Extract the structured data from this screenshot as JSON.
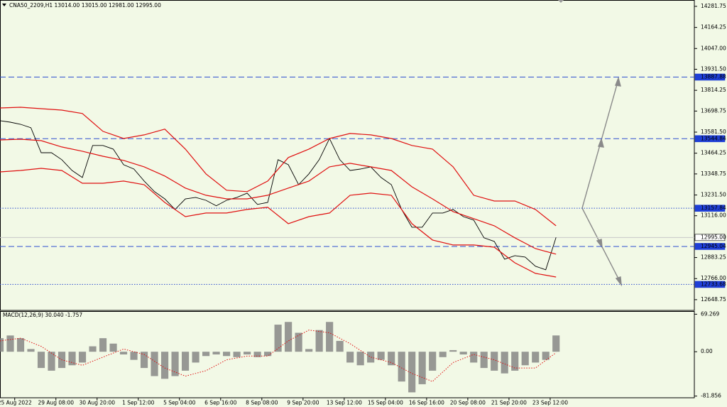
{
  "header": "CNA50_2209,H1  13014.00 13015.00 12981.00 12995.00",
  "chart_data": [
    {
      "type": "line",
      "xlim": [
        0,
        472
      ],
      "xticks": [
        {
          "value": 10,
          "label": "25 Aug 2022"
        },
        {
          "value": 38,
          "label": "29 Aug 08:00"
        },
        {
          "value": 66,
          "label": "30 Aug 20:00"
        },
        {
          "value": 94,
          "label": "1 Sep 12:00"
        },
        {
          "value": 122,
          "label": "5 Sep 04:00"
        },
        {
          "value": 150,
          "label": "6 Sep 16:00"
        },
        {
          "value": 178,
          "label": "8 Sep 08:00"
        },
        {
          "value": 206,
          "label": "9 Sep 20:00"
        },
        {
          "value": 234,
          "label": "13 Sep 12:00"
        },
        {
          "value": 262,
          "label": "15 Sep 04:00"
        },
        {
          "value": 290,
          "label": "16 Sep 16:00"
        },
        {
          "value": 318,
          "label": "20 Sep 08:00"
        },
        {
          "value": 346,
          "label": "21 Sep 20:00"
        },
        {
          "value": 374,
          "label": "23 Sep 12:00"
        }
      ],
      "ylim": [
        12589,
        14317
      ],
      "yticks": [
        14281.75,
        14164.25,
        {
          "value": 14047,
          "label": "14047.00"
        },
        {
          "value": 13931.5,
          "label": "13931.50"
        },
        13814.25,
        13698.75,
        {
          "value": 13581.5,
          "label": "13581.50"
        },
        13464.25,
        13348.75,
        {
          "value": 13231.5,
          "label": "13231.50"
        },
        {
          "value": 13116,
          "label": "13116.00"
        },
        12883.25,
        {
          "value": 12766,
          "label": "12766.00"
        },
        12648.75
      ],
      "levels": [
        {
          "value": 13887.88,
          "line": "dashed",
          "color": "#2f4fd0",
          "badge": "blue"
        },
        {
          "value": 13544.84,
          "line": "dashed",
          "color": "#2f4fd0",
          "badge": "blue"
        },
        {
          "value": 13157.84,
          "line": "dotted",
          "color": "#2f4fd0",
          "badge": "blue"
        },
        {
          "value": 12995,
          "label": "12995.00",
          "line": "solid",
          "color": "#c8c8c8",
          "badge": "white"
        },
        {
          "value": 12945.04,
          "line": "dashed",
          "color": "#2f4fd0",
          "badge": "blue"
        },
        {
          "value": 12733.68,
          "line": "dotted",
          "color": "#2f4fd0",
          "badge": "blue"
        }
      ],
      "series": [
        {
          "color": "#000000",
          "x": [
            0,
            7,
            14,
            21,
            28,
            35,
            42,
            49,
            56,
            63,
            70,
            77,
            84,
            91,
            98,
            105,
            112,
            119,
            126,
            133,
            140,
            147,
            154,
            161,
            168,
            175,
            182,
            189,
            196,
            203,
            210,
            217,
            224,
            231,
            238,
            245,
            252,
            259,
            266,
            273,
            280,
            287,
            294,
            301,
            308,
            315,
            322,
            329,
            336,
            343,
            350,
            357,
            364,
            371,
            378
          ],
          "values": [
            13645,
            13637,
            13625,
            13606,
            13467,
            13467,
            13428,
            13368,
            13329,
            13507,
            13507,
            13487,
            13400,
            13376,
            13309,
            13250,
            13210,
            13151,
            13210,
            13218,
            13202,
            13171,
            13202,
            13218,
            13242,
            13179,
            13190,
            13428,
            13400,
            13289,
            13349,
            13428,
            13546,
            13428,
            13368,
            13376,
            13388,
            13329,
            13289,
            13151,
            13052,
            13052,
            13131,
            13131,
            13151,
            13111,
            13092,
            12993,
            12973,
            12874,
            12894,
            12886,
            12835,
            12815,
            12995
          ]
        },
        {
          "color": "#e01010",
          "x": [
            0,
            14,
            28,
            42,
            56,
            70,
            84,
            98,
            112,
            126,
            140,
            154,
            168,
            182,
            196,
            210,
            224,
            238,
            252,
            266,
            280,
            294,
            308,
            322,
            336,
            350,
            364,
            378
          ],
          "values": [
            13716,
            13720,
            13712,
            13704,
            13685,
            13586,
            13546,
            13566,
            13598,
            13487,
            13349,
            13258,
            13250,
            13309,
            13440,
            13487,
            13546,
            13574,
            13566,
            13546,
            13507,
            13487,
            13388,
            13230,
            13198,
            13198,
            13151,
            13060
          ]
        },
        {
          "color": "#e01010",
          "x": [
            0,
            14,
            28,
            42,
            56,
            70,
            84,
            98,
            112,
            126,
            140,
            154,
            168,
            182,
            196,
            210,
            224,
            238,
            252,
            266,
            280,
            294,
            308,
            322,
            336,
            350,
            364,
            378
          ],
          "values": [
            13538,
            13542,
            13534,
            13499,
            13475,
            13447,
            13424,
            13388,
            13337,
            13270,
            13230,
            13210,
            13210,
            13230,
            13270,
            13309,
            13388,
            13408,
            13388,
            13368,
            13277,
            13210,
            13139,
            13100,
            13060,
            12993,
            12933,
            12902
          ]
        },
        {
          "color": "#e01010",
          "x": [
            0,
            14,
            28,
            42,
            56,
            70,
            84,
            98,
            112,
            126,
            140,
            154,
            168,
            182,
            196,
            210,
            224,
            238,
            252,
            266,
            280,
            294,
            308,
            322,
            336,
            350,
            364,
            378
          ],
          "values": [
            13360,
            13368,
            13380,
            13368,
            13297,
            13297,
            13309,
            13289,
            13190,
            13111,
            13131,
            13131,
            13151,
            13163,
            13072,
            13111,
            13131,
            13230,
            13242,
            13230,
            13072,
            12981,
            12953,
            12953,
            12941,
            12854,
            12795,
            12775
          ]
        }
      ]
    },
    {
      "type": "macd",
      "title": "MACD(12,26,9) 30.040 -1.757",
      "ylim": [
        -85,
        75
      ],
      "yticks": [
        69.269,
        {
          "value": 0,
          "label": "0.00"
        },
        -81.856
      ],
      "series": [
        {
          "type": "bar",
          "color": "#808080",
          "x": [
            0,
            7,
            14,
            21,
            28,
            35,
            42,
            49,
            56,
            63,
            70,
            77,
            84,
            91,
            98,
            105,
            112,
            119,
            126,
            133,
            140,
            147,
            154,
            161,
            168,
            175,
            182,
            189,
            196,
            203,
            210,
            217,
            224,
            231,
            238,
            245,
            252,
            259,
            266,
            273,
            280,
            287,
            294,
            301,
            308,
            315,
            322,
            329,
            336,
            343,
            350,
            357,
            364,
            371,
            378
          ],
          "values": [
            25,
            30,
            25,
            5,
            -30,
            -35,
            -30,
            -25,
            -20,
            10,
            25,
            15,
            -5,
            -15,
            -30,
            -45,
            -50,
            -45,
            -35,
            -20,
            -8,
            -5,
            -8,
            -10,
            -5,
            -10,
            -8,
            50,
            55,
            35,
            5,
            40,
            55,
            20,
            -20,
            -25,
            -20,
            -15,
            -25,
            -55,
            -75,
            -60,
            -35,
            -10,
            3,
            -5,
            -20,
            -30,
            -35,
            -40,
            -35,
            -25,
            -20,
            -15,
            30.04
          ]
        },
        {
          "type": "line",
          "line": "dotted",
          "color": "#e01010",
          "x": [
            0,
            14,
            28,
            42,
            56,
            70,
            84,
            98,
            112,
            126,
            140,
            154,
            168,
            182,
            196,
            210,
            224,
            238,
            252,
            266,
            280,
            294,
            308,
            322,
            336,
            350,
            364,
            378
          ],
          "values": [
            20,
            25,
            10,
            -15,
            -25,
            -10,
            5,
            -5,
            -30,
            -45,
            -35,
            -15,
            -8,
            -8,
            20,
            40,
            35,
            15,
            -10,
            -20,
            -40,
            -55,
            -20,
            -5,
            -15,
            -30,
            -30,
            -1.757
          ]
        }
      ]
    }
  ]
}
